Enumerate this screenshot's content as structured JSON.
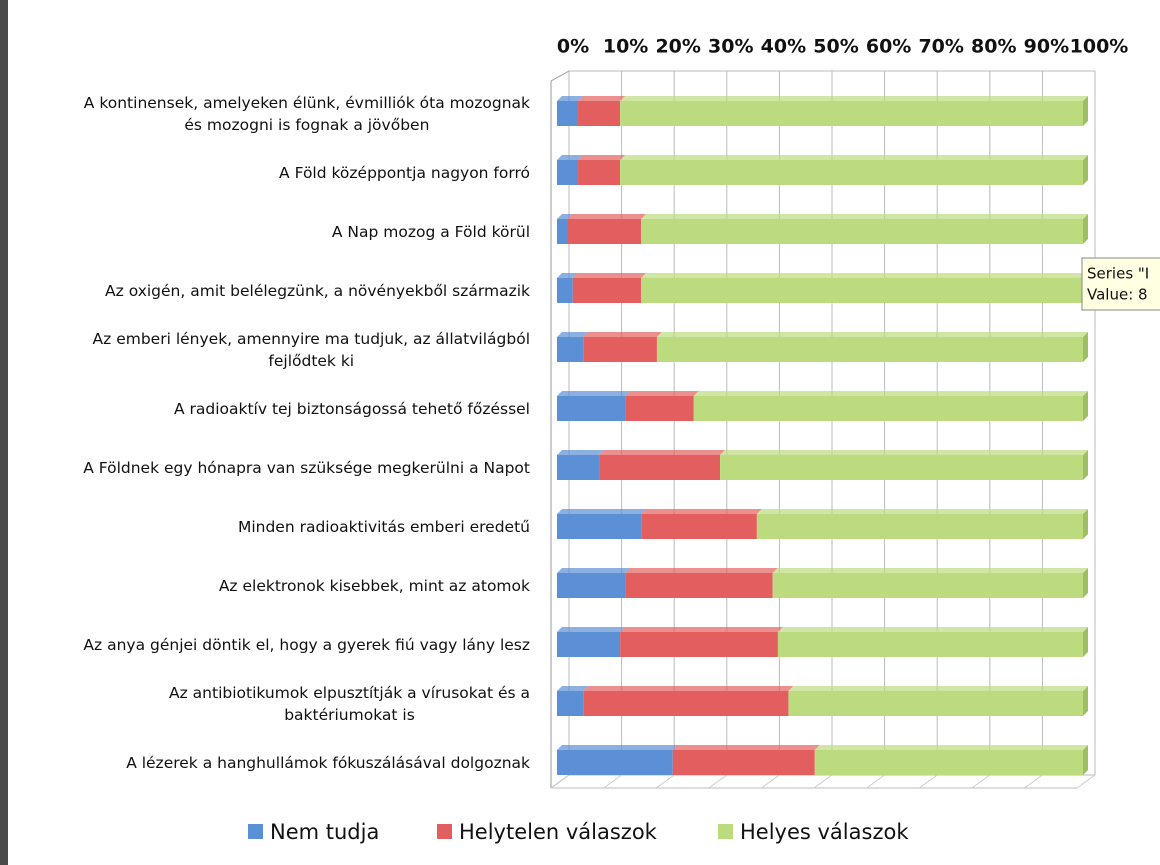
{
  "chart_data": {
    "type": "stacked-bar-horizontal",
    "categories": [
      "A kontinensek, amelyeken élünk, évmilliók óta mozognak\nés mozogni is fognak a jövőben",
      "A Föld középpontja nagyon forró",
      "A Nap mozog a Föld körül",
      "Az oxigén, amit belélegzünk, a növényekből származik",
      "Az emberi lények, amennyire ma tudjuk, az állatvilágból\nfejlődtek ki",
      "A radioaktív tej biztonságossá tehető főzéssel",
      "A Földnek egy hónapra van szüksége megkerülni a Napot",
      "Minden radioaktivitás emberi eredetű",
      "Az elektronok kisebbek, mint az atomok",
      "Az anya génjei döntik el, hogy a gyerek fiú vagy lány lesz",
      "Az antibiotikumok elpusztítják a vírusokat és a\nbaktériumokat is",
      "A lézerek a hanghullámok fókuszálásával dolgoznak"
    ],
    "series": [
      {
        "name": "Nem tudja",
        "color": "#5b8fd6",
        "values": [
          4,
          4,
          2,
          3,
          5,
          13,
          8,
          16,
          13,
          12,
          5,
          22
        ]
      },
      {
        "name": "Helytelen válaszok",
        "color": "#e35f5f",
        "values": [
          8,
          8,
          14,
          13,
          14,
          13,
          23,
          22,
          28,
          30,
          39,
          27
        ]
      },
      {
        "name": "Helyes válaszok",
        "color": "#bcdb7e",
        "values": [
          88,
          88,
          84,
          84,
          81,
          74,
          69,
          62,
          59,
          58,
          56,
          51
        ]
      }
    ],
    "ylim": [
      0,
      100
    ],
    "yticks": [
      {
        "value": 0,
        "label": "0%"
      },
      {
        "value": 10,
        "label": "10%"
      },
      {
        "value": 20,
        "label": "20%"
      },
      {
        "value": 30,
        "label": "30%"
      },
      {
        "value": 40,
        "label": "40%"
      },
      {
        "value": 50,
        "label": "50%"
      },
      {
        "value": 60,
        "label": "60%"
      },
      {
        "value": 70,
        "label": "70%"
      },
      {
        "value": 80,
        "label": "80%"
      },
      {
        "value": 90,
        "label": "90%"
      },
      {
        "value": 100,
        "label": "100%"
      }
    ],
    "grid": true,
    "legend": "bottom",
    "tooltip": {
      "line1": "Series \"I",
      "line2": "Value: 8"
    }
  }
}
